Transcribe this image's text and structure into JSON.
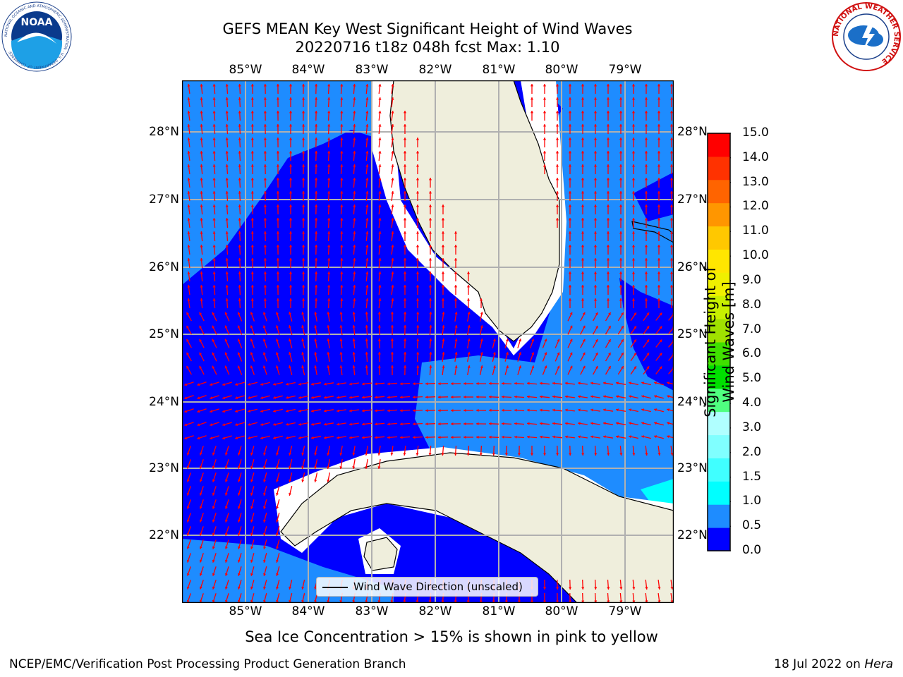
{
  "title": {
    "line1": "GEFS MEAN Key West Significant Height of Wind Waves",
    "line2": "20220716 t18z 048h fcst   Max: 1.10"
  },
  "map": {
    "lon_labels": [
      "85°W",
      "84°W",
      "83°W",
      "82°W",
      "81°W",
      "80°W",
      "79°W"
    ],
    "lat_labels": [
      "28°N",
      "27°N",
      "26°N",
      "25°N",
      "24°N",
      "23°N",
      "22°N"
    ],
    "land_color": "#efeedc",
    "arrow_color": "#ff0000",
    "grid_color": "#b0b0b0",
    "legend_label": "Wind Wave Direction (unscaled)"
  },
  "colorbar": {
    "label": "Significant Height of Wind Waves [m]",
    "ticks": [
      "0.0",
      "0.5",
      "1.0",
      "1.5",
      "2.0",
      "3.0",
      "4.0",
      "5.0",
      "6.0",
      "7.0",
      "8.0",
      "9.0",
      "10.0",
      "11.0",
      "12.0",
      "13.0",
      "14.0",
      "15.0"
    ],
    "colors": [
      "#0000ff",
      "#1e8cff",
      "#00ffff",
      "#40ffff",
      "#80ffff",
      "#b0ffff",
      "#50ff80",
      "#00e000",
      "#40e000",
      "#a0e000",
      "#c8f000",
      "#f0f000",
      "#ffe600",
      "#ffc800",
      "#ff9600",
      "#ff6400",
      "#ff3200",
      "#ff0000"
    ]
  },
  "logos": {
    "noaa_text": "NOAA",
    "noaa_ring": "NATIONAL OCEANIC AND ATMOSPHERIC ADMINISTRATION · U.S. DEPARTMENT OF COMMERCE",
    "nws_ring": "NATIONAL WEATHER SERVICE"
  },
  "notes": {
    "sea_ice": "Sea Ice Concentration > 15% is shown in pink to yellow"
  },
  "footer": {
    "left": "NCEP/EMC/Verification Post Processing Product Generation Branch",
    "right_date": "18 Jul 2022 on ",
    "right_host": "Hera"
  }
}
